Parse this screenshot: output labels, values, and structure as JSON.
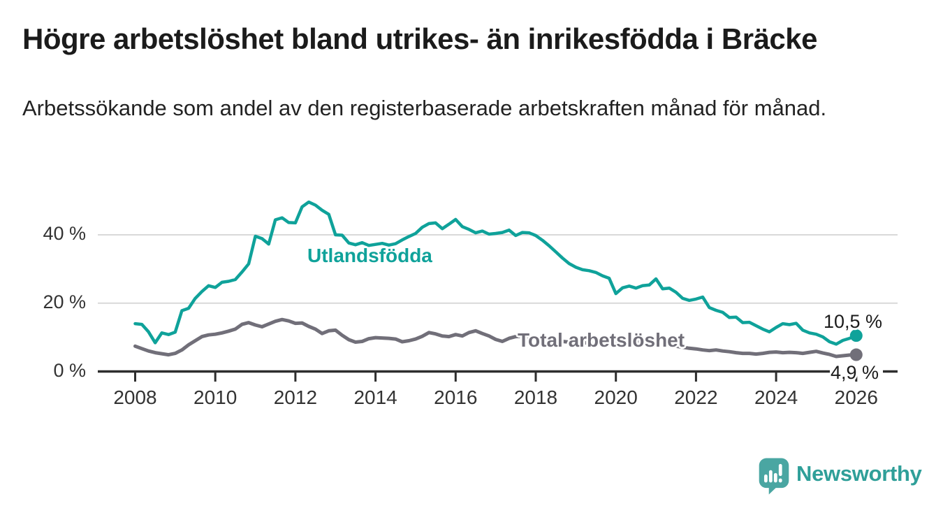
{
  "header": {
    "title": "Högre arbetslöshet bland utrikes- än inrikesfödda i Bräcke",
    "subtitle": "Arbetssökande som andel av den registerbaserade arbetskraften månad för månad."
  },
  "chart_data": {
    "type": "line",
    "x_start": 2008,
    "x_end": 2026,
    "points_per_year": 6,
    "xlim": [
      2008,
      2026
    ],
    "ylim": [
      0,
      52
    ],
    "grid": "horizontal",
    "x_ticks": [
      "2008",
      "2010",
      "2012",
      "2014",
      "2016",
      "2018",
      "2020",
      "2022",
      "2024",
      "2026"
    ],
    "y_ticks": [
      {
        "value": 0,
        "label": "0 %"
      },
      {
        "value": 20,
        "label": "20 %"
      },
      {
        "value": 40,
        "label": "40 %"
      }
    ],
    "series": [
      {
        "name": "Total arbetslöshet",
        "color": "#716f79",
        "end_label": "4,9 %",
        "end_value": 4.9,
        "values": [
          7.4,
          6.7,
          6.0,
          5.5,
          5.2,
          4.9,
          5.3,
          6.3,
          7.8,
          9.0,
          10.2,
          10.7,
          10.9,
          11.3,
          11.8,
          12.4,
          13.8,
          14.3,
          13.6,
          13.1,
          13.9,
          14.7,
          15.2,
          14.8,
          14.1,
          14.2,
          13.2,
          12.4,
          11.1,
          11.9,
          12.1,
          10.6,
          9.3,
          8.6,
          8.8,
          9.6,
          9.9,
          9.8,
          9.7,
          9.5,
          8.7,
          9.0,
          9.5,
          10.3,
          11.4,
          11.0,
          10.4,
          10.2,
          10.8,
          10.4,
          11.4,
          11.9,
          11.1,
          10.4,
          9.4,
          8.8,
          9.7,
          10.2,
          10.3,
          10.2,
          9.6,
          9.3,
          9.1,
          8.9,
          8.8,
          8.6,
          8.5,
          8.4,
          8.3,
          8.2,
          8.2,
          8.3,
          8.6,
          8.9,
          9.0,
          8.9,
          8.7,
          8.5,
          8.3,
          8.0,
          7.7,
          7.4,
          7.1,
          6.8,
          6.6,
          6.3,
          6.1,
          6.3,
          6.0,
          5.8,
          5.5,
          5.3,
          5.3,
          5.1,
          5.3,
          5.6,
          5.7,
          5.5,
          5.6,
          5.5,
          5.3,
          5.6,
          5.9,
          5.4,
          5.0,
          4.4,
          4.6,
          4.8,
          4.9
        ]
      },
      {
        "name": "Utlandsfödda",
        "color": "#0fa29a",
        "end_label": "10,5 %",
        "end_value": 10.5,
        "values": [
          14.0,
          13.8,
          11.6,
          8.4,
          11.3,
          10.8,
          11.5,
          17.8,
          18.5,
          21.4,
          23.4,
          25.1,
          24.6,
          26.1,
          26.4,
          26.9,
          29.1,
          31.5,
          39.6,
          38.9,
          37.3,
          44.4,
          45.0,
          43.6,
          43.5,
          48.2,
          49.6,
          48.7,
          47.2,
          46.0,
          40.0,
          39.9,
          37.6,
          37.1,
          37.7,
          36.9,
          37.2,
          37.5,
          37.0,
          37.4,
          38.5,
          39.5,
          40.4,
          42.2,
          43.3,
          43.5,
          41.8,
          43.1,
          44.5,
          42.4,
          41.6,
          40.6,
          41.1,
          40.2,
          40.4,
          40.7,
          41.4,
          39.8,
          40.7,
          40.6,
          39.8,
          38.4,
          36.8,
          35.0,
          33.2,
          31.6,
          30.5,
          29.8,
          29.5,
          29.0,
          28.0,
          27.3,
          22.8,
          24.5,
          25.0,
          24.4,
          25.1,
          25.3,
          27.1,
          24.2,
          24.4,
          23.2,
          21.4,
          20.8,
          21.2,
          21.8,
          18.7,
          17.9,
          17.3,
          15.8,
          15.9,
          14.3,
          14.4,
          13.4,
          12.4,
          11.6,
          12.9,
          14.0,
          13.7,
          14.1,
          12.1,
          11.3,
          10.9,
          10.1,
          8.7,
          8.0,
          9.1,
          9.7,
          10.5
        ]
      }
    ],
    "colors": {
      "grid": "#d9d9d9",
      "axis": "#2e2e2e",
      "tick_text": "#333333",
      "value_text": "#1b1b1b"
    }
  },
  "branding": {
    "logo_text": "Newsworthy",
    "logo_text_color": "#2f9f99",
    "bubble_color": "#4aa6a2"
  }
}
